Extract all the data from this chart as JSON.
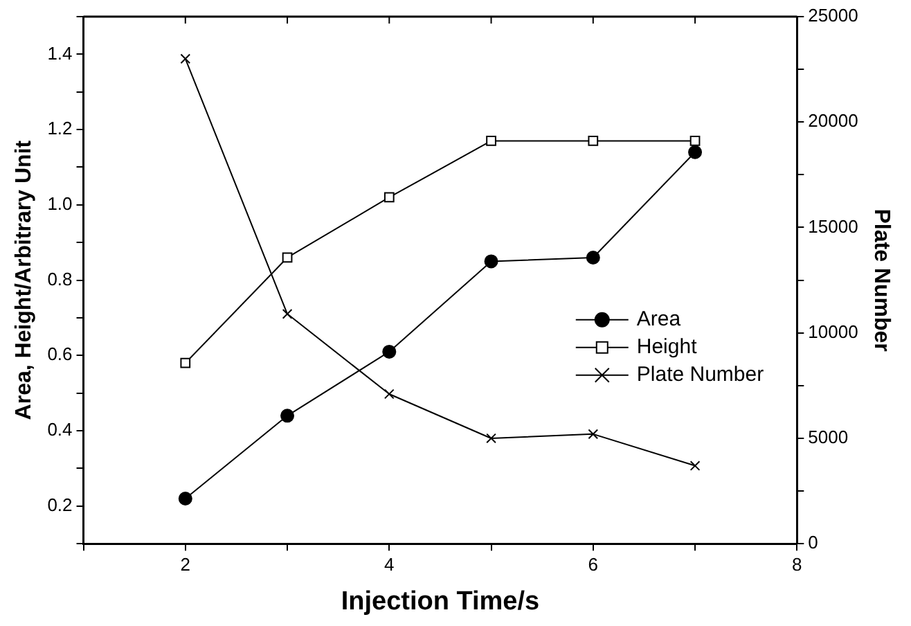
{
  "chart_data": {
    "type": "line",
    "xlabel": "Injection Time/s",
    "ylabel": "Area, Height/Arbitrary Unit",
    "y2label": "Plate Number",
    "x": [
      2,
      3,
      4,
      5,
      6,
      7
    ],
    "series": [
      {
        "name": "Area",
        "color": "#000000",
        "marker": "circle",
        "values": [
          0.22,
          0.44,
          0.61,
          0.85,
          0.86,
          1.14
        ]
      },
      {
        "name": "Height",
        "color": "#000000",
        "marker": "square",
        "values": [
          0.58,
          0.86,
          1.02,
          1.17,
          1.17,
          1.17
        ]
      },
      {
        "name": "Plate Number",
        "color": "#000000",
        "marker": "cross",
        "axis": "y2",
        "values": [
          23000,
          10900,
          7100,
          5000,
          5200,
          3700
        ]
      }
    ],
    "xlim": [
      1,
      8
    ],
    "xticks": [
      {
        "value": 1,
        "label": null
      },
      2,
      {
        "value": 3,
        "label": null
      },
      4,
      {
        "value": 5,
        "label": null
      },
      6,
      {
        "value": 7,
        "label": null
      },
      8
    ],
    "ylim": [
      0.1,
      1.5
    ],
    "yticks": [
      {
        "value": 0.1,
        "label": null
      },
      0.2,
      {
        "value": 0.3,
        "label": null
      },
      0.4,
      {
        "value": 0.5,
        "label": null
      },
      0.6,
      {
        "value": 0.7,
        "label": null
      },
      0.8,
      {
        "value": 0.9,
        "label": null
      },
      {
        "value": 1,
        "label": "1.0"
      },
      {
        "value": 1.1,
        "label": null
      },
      1.2,
      {
        "value": 1.3,
        "label": null
      },
      1.4,
      {
        "value": 1.5,
        "label": null
      }
    ],
    "y2lim": [
      0,
      25000
    ],
    "y2ticks": [
      0,
      {
        "value": 2500,
        "label": null
      },
      5000,
      {
        "value": 7500,
        "label": null
      },
      10000,
      {
        "value": 12500,
        "label": null
      },
      15000,
      {
        "value": 17500,
        "label": null
      },
      20000,
      {
        "value": 22500,
        "label": null
      },
      25000
    ],
    "grid": false,
    "legend": "right",
    "line_style": "solid"
  }
}
